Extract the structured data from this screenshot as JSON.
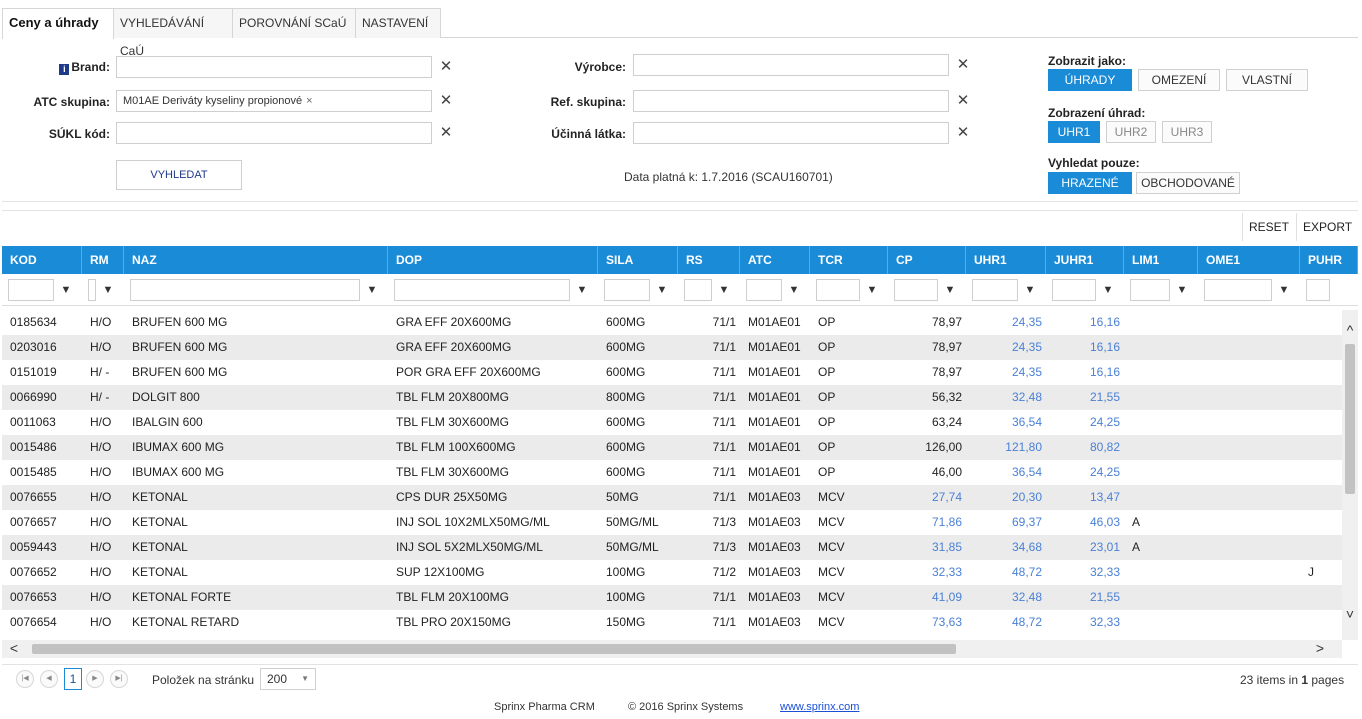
{
  "tabs": [
    {
      "label": "Ceny a úhrady"
    },
    {
      "label": "VYHLEDÁVÁNÍ CaÚ"
    },
    {
      "label": "POROVNÁNÍ SCaÚ"
    },
    {
      "label": "NASTAVENÍ"
    }
  ],
  "filters": {
    "brand_label": "Brand:",
    "brand_info_glyph": "i",
    "atc_label": "ATC skupina:",
    "atc_chip": "M01AE Deriváty kyseliny propionové",
    "atc_chip_remove": "×",
    "sukl_label": "SÚKL kód:",
    "vyrobce_label": "Výrobce:",
    "ref_label": "Ref. skupina:",
    "ucinna_label": "Účinná látka:",
    "clear_glyph": "✕",
    "search_button": "VYHLEDAT",
    "validity_text": "Data platná k: 1.7.2016 (SCAU160701)"
  },
  "display": {
    "show_as_label": "Zobrazit jako:",
    "show_as_options": [
      "ÚHRADY",
      "OMEZENÍ",
      "VLASTNÍ"
    ],
    "show_as_selected": "ÚHRADY",
    "uhr_label": "Zobrazení úhrad:",
    "uhr_options": [
      "UHR1",
      "UHR2",
      "UHR3"
    ],
    "uhr_selected": "UHR1",
    "search_only_label": "Vyhledat pouze:",
    "search_only_options": [
      "HRAZENÉ",
      "OBCHODOVANÉ"
    ],
    "search_only_selected": "HRAZENÉ"
  },
  "toolbar": {
    "reset": "RESET",
    "export": "EXPORT"
  },
  "grid": {
    "columns": [
      "KOD",
      "RM",
      "NAZ",
      "DOP",
      "SILA",
      "RS",
      "ATC",
      "TCR",
      "CP",
      "UHR1",
      "JUHR1",
      "LIM1",
      "OME1",
      "PUHR"
    ],
    "filter_icon": "funnel-icon",
    "rows": [
      {
        "kod": "0185634",
        "rm": "H/O",
        "naz": "BRUFEN 600 MG",
        "dop": "GRA EFF 20X600MG",
        "sila": "600MG",
        "rs": "71/1",
        "atc": "M01AE01",
        "tcr": "OP",
        "cp": "78,97",
        "uhr1": "24,35",
        "juhr1": "16,16",
        "lim1": "",
        "ome1": "",
        "puhr": ""
      },
      {
        "kod": "0203016",
        "rm": "H/O",
        "naz": "BRUFEN 600 MG",
        "dop": "GRA EFF 20X600MG",
        "sila": "600MG",
        "rs": "71/1",
        "atc": "M01AE01",
        "tcr": "OP",
        "cp": "78,97",
        "uhr1": "24,35",
        "juhr1": "16,16",
        "lim1": "",
        "ome1": "",
        "puhr": ""
      },
      {
        "kod": "0151019",
        "rm": "H/ -",
        "naz": "BRUFEN 600 MG",
        "dop": "POR GRA EFF 20X600MG",
        "sila": "600MG",
        "rs": "71/1",
        "atc": "M01AE01",
        "tcr": "OP",
        "cp": "78,97",
        "uhr1": "24,35",
        "juhr1": "16,16",
        "lim1": "",
        "ome1": "",
        "puhr": ""
      },
      {
        "kod": "0066990",
        "rm": "H/ -",
        "naz": "DOLGIT 800",
        "dop": "TBL FLM 20X800MG",
        "sila": "800MG",
        "rs": "71/1",
        "atc": "M01AE01",
        "tcr": "OP",
        "cp": "56,32",
        "uhr1": "32,48",
        "juhr1": "21,55",
        "lim1": "",
        "ome1": "",
        "puhr": ""
      },
      {
        "kod": "0011063",
        "rm": "H/O",
        "naz": "IBALGIN 600",
        "dop": "TBL FLM 30X600MG",
        "sila": "600MG",
        "rs": "71/1",
        "atc": "M01AE01",
        "tcr": "OP",
        "cp": "63,24",
        "uhr1": "36,54",
        "juhr1": "24,25",
        "lim1": "",
        "ome1": "",
        "puhr": ""
      },
      {
        "kod": "0015486",
        "rm": "H/O",
        "naz": "IBUMAX 600 MG",
        "dop": "TBL FLM 100X600MG",
        "sila": "600MG",
        "rs": "71/1",
        "atc": "M01AE01",
        "tcr": "OP",
        "cp": "126,00",
        "uhr1": "121,80",
        "juhr1": "80,82",
        "lim1": "",
        "ome1": "",
        "puhr": ""
      },
      {
        "kod": "0015485",
        "rm": "H/O",
        "naz": "IBUMAX 600 MG",
        "dop": "TBL FLM 30X600MG",
        "sila": "600MG",
        "rs": "71/1",
        "atc": "M01AE01",
        "tcr": "OP",
        "cp": "46,00",
        "uhr1": "36,54",
        "juhr1": "24,25",
        "lim1": "",
        "ome1": "",
        "puhr": ""
      },
      {
        "kod": "0076655",
        "rm": "H/O",
        "naz": "KETONAL",
        "dop": "CPS DUR 25X50MG",
        "sila": "50MG",
        "rs": "71/1",
        "atc": "M01AE03",
        "tcr": "MCV",
        "cp": "27,74",
        "uhr1": "20,30",
        "juhr1": "13,47",
        "lim1": "",
        "ome1": "",
        "puhr": ""
      },
      {
        "kod": "0076657",
        "rm": "H/O",
        "naz": "KETONAL",
        "dop": "INJ SOL 10X2MLX50MG/ML",
        "sila": "50MG/ML",
        "rs": "71/3",
        "atc": "M01AE03",
        "tcr": "MCV",
        "cp": "71,86",
        "uhr1": "69,37",
        "juhr1": "46,03",
        "lim1": "A",
        "ome1": "",
        "puhr": ""
      },
      {
        "kod": "0059443",
        "rm": "H/O",
        "naz": "KETONAL",
        "dop": "INJ SOL 5X2MLX50MG/ML",
        "sila": "50MG/ML",
        "rs": "71/3",
        "atc": "M01AE03",
        "tcr": "MCV",
        "cp": "31,85",
        "uhr1": "34,68",
        "juhr1": "23,01",
        "lim1": "A",
        "ome1": "",
        "puhr": ""
      },
      {
        "kod": "0076652",
        "rm": "H/O",
        "naz": "KETONAL",
        "dop": "SUP 12X100MG",
        "sila": "100MG",
        "rs": "71/2",
        "atc": "M01AE03",
        "tcr": "MCV",
        "cp": "32,33",
        "uhr1": "48,72",
        "juhr1": "32,33",
        "lim1": "",
        "ome1": "",
        "puhr": "J"
      },
      {
        "kod": "0076653",
        "rm": "H/O",
        "naz": "KETONAL FORTE",
        "dop": "TBL FLM 20X100MG",
        "sila": "100MG",
        "rs": "71/1",
        "atc": "M01AE03",
        "tcr": "MCV",
        "cp": "41,09",
        "uhr1": "32,48",
        "juhr1": "21,55",
        "lim1": "",
        "ome1": "",
        "puhr": ""
      },
      {
        "kod": "0076654",
        "rm": "H/O",
        "naz": "KETONAL RETARD",
        "dop": "TBL PRO 20X150MG",
        "sila": "150MG",
        "rs": "71/1",
        "atc": "M01AE03",
        "tcr": "MCV",
        "cp": "73,63",
        "uhr1": "48,72",
        "juhr1": "32,33",
        "lim1": "",
        "ome1": "",
        "puhr": ""
      }
    ],
    "blue_cp_rows": [
      7,
      8,
      9,
      10,
      11,
      12
    ]
  },
  "pager": {
    "first": "|◀",
    "prev": "◀",
    "next": "▶",
    "last": "▶|",
    "current_page": "1",
    "per_page_label": "Položek na stránku",
    "per_page_value": "200",
    "summary_prefix": "23 items in ",
    "summary_pages": "1",
    "summary_suffix": " pages"
  },
  "footer": {
    "product": "Sprinx Pharma CRM",
    "copyright": "© 2016 Sprinx Systems",
    "link": "www.sprinx.com"
  },
  "colors": {
    "accent": "#1a8bd6",
    "link_value": "#4a80d6"
  }
}
